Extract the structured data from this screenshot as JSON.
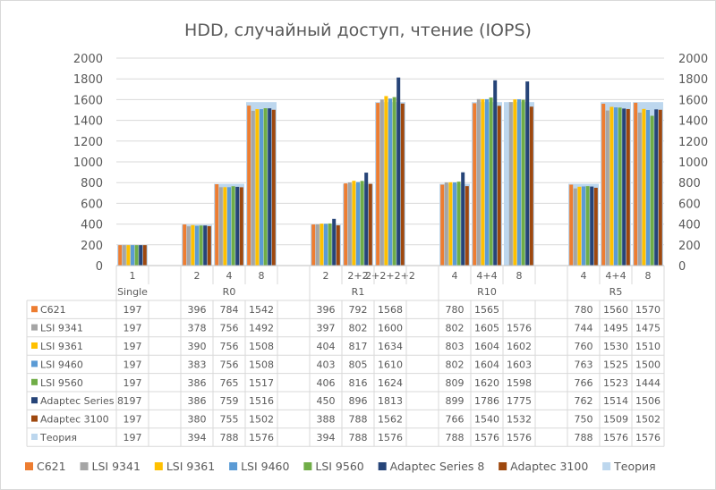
{
  "chart_data": {
    "type": "bar",
    "title": "HDD, случайный доступ, чтение (IOPS)",
    "ylim": [
      0,
      2000
    ],
    "yticks": [
      0,
      200,
      400,
      600,
      800,
      1000,
      1200,
      1400,
      1600,
      1800,
      2000
    ],
    "grid": true,
    "legend_position": "bottom",
    "groups": [
      {
        "name": "Single",
        "categories": [
          "1",
          ""
        ]
      },
      {
        "name": "R0",
        "categories": [
          "2",
          "4",
          "8",
          ""
        ]
      },
      {
        "name": "R1",
        "categories": [
          "2",
          "2+2",
          "2+2+2+2",
          ""
        ]
      },
      {
        "name": "R10",
        "categories": [
          "4",
          "4+4",
          "8",
          ""
        ]
      },
      {
        "name": "R5",
        "categories": [
          "4",
          "4+4",
          "8"
        ]
      }
    ],
    "series": [
      {
        "name": "C621",
        "color": "#ED7D31",
        "values": [
          197,
          null,
          396,
          784,
          1542,
          null,
          396,
          792,
          1568,
          null,
          780,
          1565,
          null,
          null,
          780,
          1560,
          1570
        ]
      },
      {
        "name": "LSI 9341",
        "color": "#A5A5A5",
        "values": [
          197,
          null,
          378,
          756,
          1492,
          null,
          397,
          802,
          1600,
          null,
          802,
          1605,
          1576,
          null,
          744,
          1495,
          1475
        ]
      },
      {
        "name": "LSI 9361",
        "color": "#FFC000",
        "values": [
          197,
          null,
          390,
          756,
          1508,
          null,
          404,
          817,
          1634,
          null,
          803,
          1604,
          1602,
          null,
          760,
          1530,
          1510
        ]
      },
      {
        "name": "LSI 9460",
        "color": "#5B9BD5",
        "values": [
          197,
          null,
          383,
          756,
          1508,
          null,
          403,
          805,
          1610,
          null,
          802,
          1604,
          1603,
          null,
          763,
          1525,
          1500
        ]
      },
      {
        "name": "LSI 9560",
        "color": "#70AD47",
        "values": [
          197,
          null,
          386,
          765,
          1517,
          null,
          406,
          816,
          1624,
          null,
          809,
          1620,
          1598,
          null,
          766,
          1523,
          1444
        ]
      },
      {
        "name": "Adaptec Series 8",
        "color": "#264478",
        "values": [
          197,
          null,
          386,
          759,
          1516,
          null,
          450,
          896,
          1813,
          null,
          899,
          1786,
          1775,
          null,
          762,
          1514,
          1506
        ]
      },
      {
        "name": "Adaptec 3100",
        "color": "#9E480E",
        "values": [
          197,
          null,
          380,
          755,
          1502,
          null,
          388,
          788,
          1562,
          null,
          766,
          1540,
          1532,
          null,
          750,
          1509,
          1502
        ]
      },
      {
        "name": "Теория",
        "color": "#BDD7EE",
        "values": [
          197,
          null,
          394,
          788,
          1576,
          null,
          394,
          788,
          1576,
          null,
          788,
          1576,
          1576,
          null,
          788,
          1576,
          1576
        ]
      }
    ]
  }
}
